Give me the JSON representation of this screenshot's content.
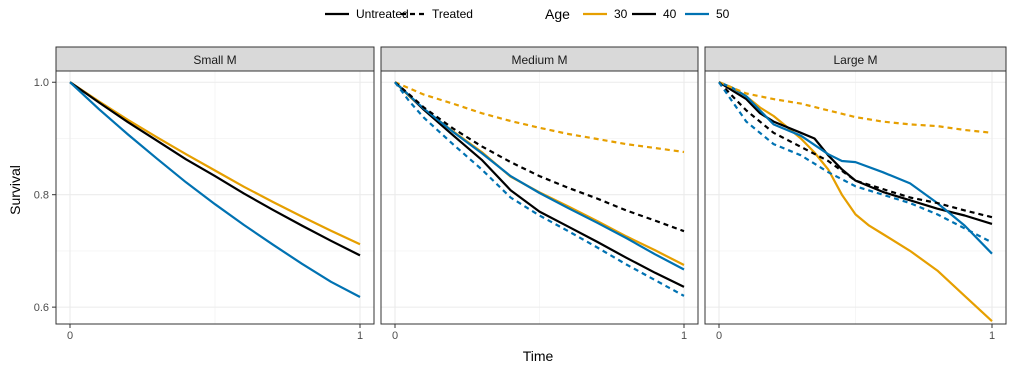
{
  "chart_data": {
    "type": "line",
    "xlabel": "Time",
    "ylabel": "Survival",
    "xlim": [
      0,
      1
    ],
    "ylim": [
      0.57,
      1.02
    ],
    "x_ticks": [
      0,
      1
    ],
    "x_tick_labels": [
      "0",
      "1"
    ],
    "y_ticks": [
      0.6,
      0.8,
      1.0
    ],
    "y_tick_labels": [
      "0.6",
      "0.8",
      "1.0"
    ],
    "grid": true,
    "legend_position": "top",
    "legend": {
      "linetype_entries": [
        {
          "label": "Untreated",
          "dash": "solid"
        },
        {
          "label": "Treated",
          "dash": "dashed"
        }
      ],
      "age_title": "Age",
      "age_entries": [
        {
          "label": "30",
          "color": "#E69F00"
        },
        {
          "label": "40",
          "color": "#000000"
        },
        {
          "label": "50",
          "color": "#0072B2"
        }
      ]
    },
    "panels": [
      {
        "title": "Small M",
        "series": [
          {
            "age": "30",
            "treatment": "Untreated",
            "color": "#E69F00",
            "dash": "solid",
            "x": [
              0,
              0.1,
              0.2,
              0.3,
              0.4,
              0.5,
              0.6,
              0.7,
              0.8,
              0.9,
              1.0
            ],
            "y": [
              1.0,
              0.966,
              0.933,
              0.902,
              0.872,
              0.843,
              0.814,
              0.787,
              0.761,
              0.736,
              0.712
            ]
          },
          {
            "age": "40",
            "treatment": "Untreated",
            "color": "#000000",
            "dash": "solid",
            "x": [
              0,
              0.1,
              0.2,
              0.3,
              0.4,
              0.5,
              0.6,
              0.7,
              0.8,
              0.9,
              1.0
            ],
            "y": [
              1.0,
              0.964,
              0.929,
              0.896,
              0.863,
              0.833,
              0.802,
              0.773,
              0.745,
              0.718,
              0.692
            ]
          },
          {
            "age": "50",
            "treatment": "Untreated",
            "color": "#0072B2",
            "dash": "solid",
            "x": [
              0,
              0.1,
              0.2,
              0.3,
              0.4,
              0.5,
              0.6,
              0.7,
              0.8,
              0.9,
              1.0
            ],
            "y": [
              1.0,
              0.952,
              0.907,
              0.864,
              0.822,
              0.783,
              0.746,
              0.711,
              0.677,
              0.645,
              0.618
            ]
          }
        ]
      },
      {
        "title": "Medium M",
        "series": [
          {
            "age": "30",
            "treatment": "Untreated",
            "color": "#E69F00",
            "dash": "solid",
            "x": [
              0,
              0.05,
              0.1,
              0.2,
              0.3,
              0.4,
              0.5,
              0.6,
              0.7,
              0.8,
              0.9,
              1.0
            ],
            "y": [
              1.0,
              0.975,
              0.952,
              0.913,
              0.876,
              0.832,
              0.804,
              0.779,
              0.753,
              0.726,
              0.701,
              0.675
            ]
          },
          {
            "age": "40",
            "treatment": "Untreated",
            "color": "#000000",
            "dash": "solid",
            "x": [
              0,
              0.05,
              0.1,
              0.2,
              0.3,
              0.4,
              0.5,
              0.6,
              0.7,
              0.8,
              0.9,
              1.0
            ],
            "y": [
              1.0,
              0.976,
              0.951,
              0.906,
              0.862,
              0.808,
              0.77,
              0.743,
              0.716,
              0.688,
              0.661,
              0.636
            ]
          },
          {
            "age": "50",
            "treatment": "Untreated",
            "color": "#0072B2",
            "dash": "solid",
            "x": [
              0,
              0.05,
              0.1,
              0.2,
              0.3,
              0.4,
              0.5,
              0.6,
              0.7,
              0.8,
              0.9,
              1.0
            ],
            "y": [
              1.0,
              0.976,
              0.953,
              0.912,
              0.874,
              0.833,
              0.803,
              0.776,
              0.75,
              0.723,
              0.694,
              0.667
            ]
          },
          {
            "age": "30",
            "treatment": "Treated",
            "color": "#E69F00",
            "dash": "dashed",
            "x": [
              0,
              0.1,
              0.2,
              0.3,
              0.4,
              0.5,
              0.6,
              0.7,
              0.8,
              0.9,
              1.0
            ],
            "y": [
              1.0,
              0.978,
              0.962,
              0.945,
              0.931,
              0.919,
              0.908,
              0.899,
              0.89,
              0.883,
              0.876
            ]
          },
          {
            "age": "40",
            "treatment": "Treated",
            "color": "#000000",
            "dash": "dashed",
            "x": [
              0,
              0.05,
              0.1,
              0.2,
              0.3,
              0.4,
              0.5,
              0.6,
              0.7,
              0.8,
              0.9,
              1.0
            ],
            "y": [
              1.0,
              0.978,
              0.955,
              0.918,
              0.886,
              0.858,
              0.833,
              0.812,
              0.793,
              0.772,
              0.754,
              0.735
            ]
          },
          {
            "age": "50",
            "treatment": "Treated",
            "color": "#0072B2",
            "dash": "dashed",
            "x": [
              0,
              0.05,
              0.1,
              0.2,
              0.3,
              0.4,
              0.5,
              0.6,
              0.7,
              0.8,
              0.9,
              1.0
            ],
            "y": [
              1.0,
              0.966,
              0.937,
              0.89,
              0.845,
              0.795,
              0.763,
              0.735,
              0.706,
              0.676,
              0.648,
              0.62
            ]
          }
        ]
      },
      {
        "title": "Large M",
        "series": [
          {
            "age": "30",
            "treatment": "Untreated",
            "color": "#E69F00",
            "dash": "solid",
            "x": [
              0,
              0.05,
              0.1,
              0.15,
              0.2,
              0.25,
              0.3,
              0.35,
              0.4,
              0.45,
              0.5,
              0.55,
              0.6,
              0.7,
              0.8,
              0.9,
              1.0
            ],
            "y": [
              1.0,
              0.99,
              0.975,
              0.955,
              0.94,
              0.92,
              0.9,
              0.875,
              0.845,
              0.8,
              0.765,
              0.745,
              0.73,
              0.7,
              0.665,
              0.62,
              0.575
            ]
          },
          {
            "age": "40",
            "treatment": "Untreated",
            "color": "#000000",
            "dash": "solid",
            "x": [
              0,
              0.05,
              0.1,
              0.15,
              0.2,
              0.3,
              0.35,
              0.4,
              0.45,
              0.5,
              0.6,
              0.7,
              0.8,
              0.9,
              1.0
            ],
            "y": [
              1.0,
              0.985,
              0.97,
              0.945,
              0.93,
              0.91,
              0.9,
              0.87,
              0.845,
              0.825,
              0.805,
              0.79,
              0.775,
              0.763,
              0.748
            ]
          },
          {
            "age": "50",
            "treatment": "Untreated",
            "color": "#0072B2",
            "dash": "solid",
            "x": [
              0,
              0.05,
              0.1,
              0.15,
              0.2,
              0.3,
              0.4,
              0.45,
              0.5,
              0.6,
              0.7,
              0.8,
              0.9,
              1.0
            ],
            "y": [
              1.0,
              0.99,
              0.975,
              0.95,
              0.925,
              0.905,
              0.872,
              0.86,
              0.858,
              0.84,
              0.82,
              0.785,
              0.745,
              0.695
            ]
          },
          {
            "age": "30",
            "treatment": "Treated",
            "color": "#E69F00",
            "dash": "dashed",
            "x": [
              0,
              0.1,
              0.2,
              0.3,
              0.4,
              0.5,
              0.6,
              0.7,
              0.8,
              0.9,
              1.0
            ],
            "y": [
              1.0,
              0.98,
              0.97,
              0.962,
              0.95,
              0.938,
              0.93,
              0.925,
              0.922,
              0.915,
              0.91
            ]
          },
          {
            "age": "40",
            "treatment": "Treated",
            "color": "#000000",
            "dash": "dashed",
            "x": [
              0,
              0.05,
              0.1,
              0.2,
              0.3,
              0.4,
              0.5,
              0.6,
              0.7,
              0.8,
              0.9,
              1.0
            ],
            "y": [
              1.0,
              0.975,
              0.95,
              0.91,
              0.885,
              0.86,
              0.825,
              0.81,
              0.795,
              0.785,
              0.772,
              0.76
            ]
          },
          {
            "age": "50",
            "treatment": "Treated",
            "color": "#0072B2",
            "dash": "dashed",
            "x": [
              0,
              0.05,
              0.1,
              0.2,
              0.3,
              0.4,
              0.5,
              0.6,
              0.7,
              0.8,
              0.9,
              1.0
            ],
            "y": [
              1.0,
              0.965,
              0.93,
              0.89,
              0.87,
              0.84,
              0.815,
              0.8,
              0.785,
              0.765,
              0.74,
              0.715
            ]
          }
        ]
      }
    ]
  }
}
